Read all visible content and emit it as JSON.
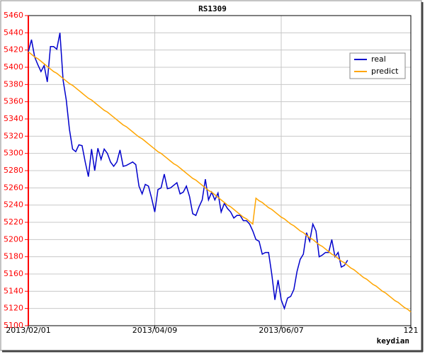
{
  "chart_data": {
    "type": "line",
    "title": "RS1309",
    "x_label": "keydian",
    "x": [
      0,
      1,
      2,
      3,
      4,
      5,
      6,
      7,
      8,
      9,
      10,
      11,
      12,
      13,
      14,
      15,
      16,
      17,
      18,
      19,
      20,
      21,
      22,
      23,
      24,
      25,
      26,
      27,
      28,
      29,
      30,
      31,
      32,
      33,
      34,
      35,
      36,
      37,
      38,
      39,
      40,
      41,
      42,
      43,
      44,
      45,
      46,
      47,
      48,
      49,
      50,
      51,
      52,
      53,
      54,
      55,
      56,
      57,
      58,
      59,
      60,
      61,
      62,
      63,
      64,
      65,
      66,
      67,
      68,
      69,
      70,
      71,
      72,
      73,
      74,
      75,
      76,
      77,
      78,
      79,
      80,
      81,
      82,
      83,
      84,
      85,
      86,
      87,
      88,
      89,
      90,
      91,
      92,
      93,
      94,
      95,
      96,
      97,
      98,
      99,
      100,
      101,
      102,
      103,
      104,
      105,
      106,
      107,
      108,
      109,
      110,
      111,
      112,
      113,
      114,
      115,
      116,
      117,
      118,
      119,
      120,
      121
    ],
    "series": [
      {
        "name": "real",
        "color": "#0000cc",
        "values": [
          5418,
          5432,
          5412,
          5403,
          5395,
          5402,
          5383,
          5424,
          5424,
          5421,
          5440,
          5385,
          5362,
          5328,
          5305,
          5302,
          5310,
          5309,
          5290,
          5273,
          5305,
          5280,
          5306,
          5293,
          5305,
          5300,
          5290,
          5285,
          5290,
          5304,
          5285,
          5286,
          5288,
          5290,
          5287,
          5262,
          5253,
          5264,
          5262,
          5248,
          5232,
          5258,
          5260,
          5276,
          5259,
          5260,
          5263,
          5266,
          5253,
          5255,
          5262,
          5250,
          5230,
          5228,
          5238,
          5246,
          5270,
          5246,
          5255,
          5246,
          5254,
          5232,
          5242,
          5236,
          5232,
          5225,
          5228,
          5228,
          5222,
          5222,
          5218,
          5210,
          5200,
          5198,
          5183,
          5185,
          5185,
          5160,
          5130,
          5153,
          5130,
          5120,
          5132,
          5134,
          5142,
          5163,
          5177,
          5183,
          5208,
          5198,
          5218,
          5210,
          5180,
          5182,
          5185,
          5185,
          5200,
          5180,
          5185,
          5168,
          5170,
          5176,
          null,
          null,
          null,
          null,
          null,
          null,
          null,
          null,
          null,
          null,
          null,
          null,
          null,
          null,
          null,
          null,
          null,
          null,
          null,
          null
        ]
      },
      {
        "name": "predict",
        "color": "#ffa500",
        "values": [
          5418,
          5415,
          5412,
          5410,
          5407,
          5404,
          5401,
          5398,
          5395,
          5393,
          5390,
          5387,
          5384,
          5381,
          5379,
          5376,
          5373,
          5370,
          5367,
          5364,
          5362,
          5359,
          5356,
          5353,
          5350,
          5348,
          5345,
          5342,
          5339,
          5336,
          5333,
          5331,
          5328,
          5325,
          5322,
          5319,
          5317,
          5314,
          5311,
          5308,
          5305,
          5302,
          5300,
          5297,
          5294,
          5291,
          5288,
          5286,
          5283,
          5280,
          5277,
          5274,
          5271,
          5269,
          5266,
          5263,
          5260,
          5257,
          5255,
          5252,
          5249,
          5246,
          5243,
          5240,
          5238,
          5235,
          5232,
          5229,
          5226,
          5224,
          5221,
          5218,
          5248,
          5245,
          5243,
          5240,
          5237,
          5235,
          5232,
          5229,
          5226,
          5224,
          5221,
          5218,
          5216,
          5213,
          5210,
          5208,
          5205,
          5202,
          5200,
          5197,
          5194,
          5192,
          5189,
          5186,
          5183,
          5181,
          5178,
          5175,
          5173,
          5170,
          5167,
          5165,
          5162,
          5159,
          5156,
          5154,
          5151,
          5148,
          5146,
          5143,
          5140,
          5138,
          5135,
          5132,
          5129,
          5127,
          5124,
          5121,
          5119,
          5116
        ]
      }
    ],
    "xlim": [
      0,
      121
    ],
    "xticks": [
      {
        "value": 0,
        "label": "2013/02/01"
      },
      {
        "value": 40,
        "label": "2013/04/09"
      },
      {
        "value": 80,
        "label": "2013/06/07"
      },
      121
    ],
    "ylim": [
      5100,
      5460
    ],
    "yticks": [
      5100,
      5120,
      5140,
      5160,
      5180,
      5200,
      5220,
      5240,
      5260,
      5280,
      5300,
      5320,
      5340,
      5360,
      5380,
      5400,
      5420,
      5440,
      5460
    ],
    "grid": true,
    "legend": "top-right",
    "axis_color": "#ff0000"
  }
}
